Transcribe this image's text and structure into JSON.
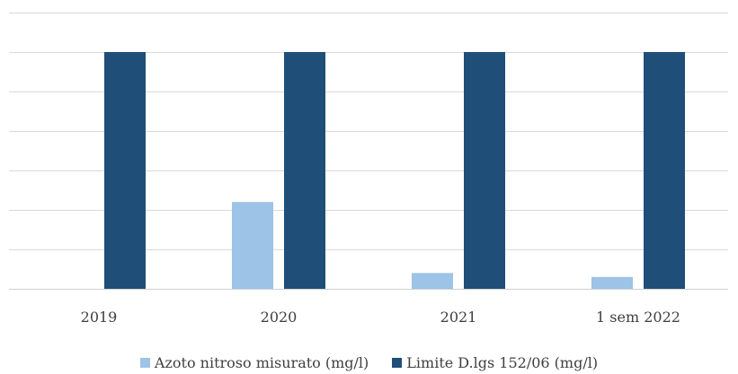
{
  "chart_data": {
    "type": "bar",
    "categories": [
      "2019",
      "2020",
      "2021",
      "1 sem 2022"
    ],
    "series": [
      {
        "name": "Azoto nitroso misurato (mg/l)",
        "values": [
          0,
          0.22,
          0.04,
          0.03
        ],
        "color": "#9DC3E6"
      },
      {
        "name": "Limite D.lgs 152/06 (mg/l)",
        "values": [
          0.6,
          0.6,
          0.6,
          0.6
        ],
        "color": "#1F4E79"
      }
    ],
    "ylim": [
      0,
      0.7
    ],
    "yticks": [
      0,
      0.1,
      0.2,
      0.3,
      0.4,
      0.5,
      0.6,
      0.7
    ],
    "grid": true,
    "legend_position": "bottom",
    "title": "",
    "xlabel": "",
    "ylabel": ""
  }
}
